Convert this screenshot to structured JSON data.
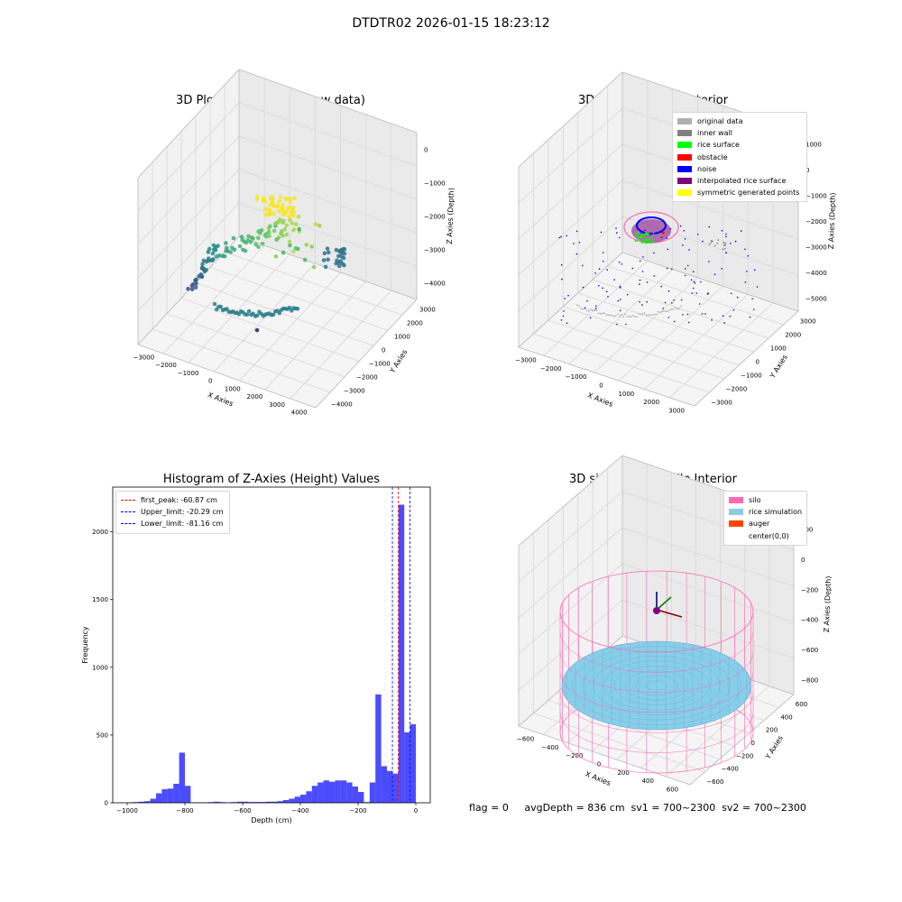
{
  "window": {
    "title": "DTDTR02 2026-01-15 18:23:12"
  },
  "status_text": "flag = 0     avgDepth = 836 cm  sv1 = 700~2300  sv2 = 700~2300",
  "colors": {
    "noise": "#0000ff",
    "rice_surface": "#00ff00",
    "obstacle": "#ff0000",
    "interpolated": "#800080",
    "symmetric": "#ffff00",
    "original": "#b0b0b0",
    "inner_wall": "#808080",
    "silo": "#ff69b4",
    "rice_sim": "#87ceeb",
    "auger": "#ff4500",
    "hist_bar": "#0000ff"
  },
  "chart_data": [
    {
      "type": "scatter",
      "subtype": "3d",
      "title": "3D Plot of Silo Interior(row data)",
      "xlabel": "X Axies",
      "ylabel": "Y Axies",
      "zlabel": "Z Axies (Depth)",
      "xticks": [
        "−3000",
        "−2000",
        "−1000",
        "0",
        "1000",
        "2000",
        "3000",
        "4000"
      ],
      "yticks": [
        "−4000",
        "−3000",
        "−2000",
        "−1000",
        "0",
        "1000",
        "2000",
        "3000"
      ],
      "zticks": [
        "−4000",
        "−3000",
        "−2000",
        "−1000",
        "0"
      ],
      "xlim": [
        -3400,
        4000
      ],
      "ylim": [
        -4000,
        3500
      ],
      "zlim": [
        -4800,
        200
      ],
      "colormap": "viridis"
    },
    {
      "type": "scatter",
      "subtype": "3d",
      "title": "3D classify of Silo Interior",
      "xlabel": "X Axies",
      "ylabel": "Y Axies",
      "zlabel": "Z Axies (Depth)",
      "xticks": [
        "−3000",
        "−2000",
        "−1000",
        "0",
        "1000",
        "2000",
        "3000"
      ],
      "yticks": [
        "−3000",
        "−2000",
        "−1000",
        "0",
        "1000",
        "2000",
        "3000"
      ],
      "zticks": [
        "−5000",
        "−4000",
        "−3000",
        "−2000",
        "−1000",
        "0",
        "1000"
      ],
      "legend_position": "upper-right",
      "legend": [
        {
          "label": "original data",
          "color": "#b0b0b0"
        },
        {
          "label": "inner wall",
          "color": "#808080"
        },
        {
          "label": "rice surface",
          "color": "#00ff00"
        },
        {
          "label": "obstacle",
          "color": "#ff0000"
        },
        {
          "label": "noise",
          "color": "#0000ff"
        },
        {
          "label": "interpolated rice surface",
          "color": "#800080"
        },
        {
          "label": "symmetric generated points",
          "color": "#ffff00"
        }
      ]
    },
    {
      "type": "bar",
      "subtype": "histogram",
      "title": "Histogram of Z-Axies (Height) Values",
      "xlabel": "Depth (cm)",
      "ylabel": "Frequency",
      "xlim": [
        -1050,
        50
      ],
      "ylim": [
        0,
        2330
      ],
      "xticks": [
        -1000,
        -800,
        -600,
        -400,
        -200,
        0
      ],
      "xtick_labels": [
        "−1000",
        "−800",
        "−600",
        "−400",
        "−200",
        "0"
      ],
      "yticks": [
        0,
        500,
        1000,
        1500,
        2000
      ],
      "bin_width": 20,
      "bins": [
        [
          -1000,
          3
        ],
        [
          -980,
          5
        ],
        [
          -960,
          8
        ],
        [
          -940,
          12
        ],
        [
          -920,
          30
        ],
        [
          -900,
          70
        ],
        [
          -880,
          100
        ],
        [
          -860,
          105
        ],
        [
          -840,
          140
        ],
        [
          -820,
          370
        ],
        [
          -800,
          125
        ],
        [
          -780,
          3
        ],
        [
          -760,
          3
        ],
        [
          -740,
          3
        ],
        [
          -720,
          5
        ],
        [
          -700,
          8
        ],
        [
          -680,
          5
        ],
        [
          -660,
          3
        ],
        [
          -640,
          5
        ],
        [
          -620,
          8
        ],
        [
          -600,
          8
        ],
        [
          -580,
          6
        ],
        [
          -560,
          6
        ],
        [
          -540,
          6
        ],
        [
          -520,
          8
        ],
        [
          -500,
          8
        ],
        [
          -480,
          12
        ],
        [
          -460,
          20
        ],
        [
          -440,
          30
        ],
        [
          -420,
          45
        ],
        [
          -400,
          60
        ],
        [
          -380,
          85
        ],
        [
          -360,
          125
        ],
        [
          -340,
          150
        ],
        [
          -320,
          165
        ],
        [
          -300,
          155
        ],
        [
          -280,
          165
        ],
        [
          -260,
          165
        ],
        [
          -240,
          150
        ],
        [
          -220,
          120
        ],
        [
          -200,
          80
        ],
        [
          -180,
          5
        ],
        [
          -160,
          150
        ],
        [
          -140,
          800
        ],
        [
          -120,
          270
        ],
        [
          -100,
          235
        ],
        [
          -80,
          215
        ],
        [
          -60,
          2200
        ],
        [
          -40,
          520
        ],
        [
          -20,
          580
        ]
      ],
      "vlines": [
        {
          "label": "first_peak: -60.87 cm",
          "x": -60.87,
          "color": "#ff0000"
        },
        {
          "label": "Upper_limit: -20.29 cm",
          "x": -20.29,
          "color": "#0000ff"
        },
        {
          "label": "Lower_limit: -81.16 cm",
          "x": -81.16,
          "color": "#0000ff"
        }
      ],
      "legend_position": "upper-left"
    },
    {
      "type": "scatter",
      "subtype": "3d-surface",
      "title": "3D simulation of Silo Interior",
      "xlabel": "X Axies",
      "ylabel": "Y Axies",
      "zlabel": "Z Axies (Depth)",
      "xticks": [
        "−600",
        "−400",
        "−200",
        "0",
        "200",
        "400",
        "600"
      ],
      "yticks": [
        "−600",
        "−400",
        "−200",
        "0",
        "200",
        "400",
        "600"
      ],
      "zticks": [
        "−800",
        "−600",
        "−400",
        "−200",
        "0",
        "200"
      ],
      "legend_position": "upper-right",
      "legend": [
        {
          "label": "silo",
          "color": "#ff69b4"
        },
        {
          "label": "rice simulation",
          "color": "#87ceeb"
        },
        {
          "label": "auger",
          "color": "#ff4500"
        },
        {
          "label": "center(0,0)",
          "color": ""
        }
      ]
    }
  ]
}
